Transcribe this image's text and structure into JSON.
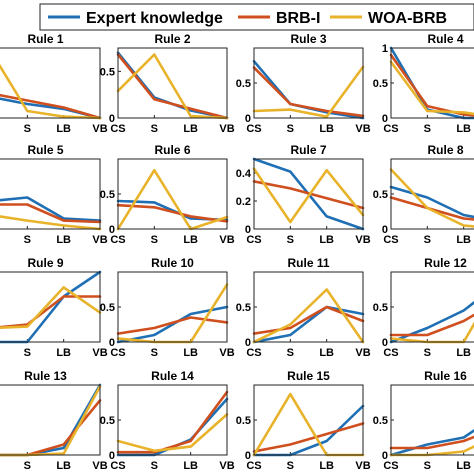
{
  "chart_data": {
    "type": "line",
    "legend": {
      "placement": "top-center",
      "entries": [
        "Expert knowledge",
        "BRB-I",
        "WOA-BRB"
      ]
    },
    "colors": {
      "Expert knowledge": "#1f6fb4",
      "BRB-I": "#cf4f1f",
      "WOA-BRB": "#e8b32a"
    },
    "x": [
      "CS",
      "S",
      "LB",
      "VB"
    ],
    "panels": [
      {
        "title": "Rule 1",
        "ylim": [
          0,
          1
        ],
        "yticks": [],
        "series": [
          {
            "name": "Expert knowledge",
            "values": [
              0.3,
              0.2,
              0.13,
              0.0
            ]
          },
          {
            "name": "BRB-I",
            "values": [
              0.35,
              0.25,
              0.15,
              0.0
            ]
          },
          {
            "name": "WOA-BRB",
            "values": [
              0.95,
              0.1,
              0.02,
              0.0
            ]
          }
        ]
      },
      {
        "title": "Rule 2",
        "ylim": [
          0,
          0.75
        ],
        "yticks": [
          "0",
          "0.5"
        ],
        "series": [
          {
            "name": "Expert knowledge",
            "values": [
              0.7,
              0.22,
              0.08,
              0.0
            ]
          },
          {
            "name": "BRB-I",
            "values": [
              0.68,
              0.2,
              0.1,
              0.0
            ]
          },
          {
            "name": "WOA-BRB",
            "values": [
              0.29,
              0.68,
              0.02,
              0.0
            ]
          }
        ]
      },
      {
        "title": "Rule 3",
        "ylim": [
          0,
          1
        ],
        "yticks": [
          "0",
          "0.5"
        ],
        "series": [
          {
            "name": "Expert knowledge",
            "values": [
              0.81,
              0.2,
              0.08,
              0.0
            ]
          },
          {
            "name": "BRB-I",
            "values": [
              0.72,
              0.2,
              0.1,
              0.03
            ]
          },
          {
            "name": "WOA-BRB",
            "values": [
              0.1,
              0.12,
              0.02,
              0.73
            ]
          }
        ]
      },
      {
        "title": "Rule 4",
        "ylim": [
          0,
          1
        ],
        "yticks": [
          "0",
          "0.5",
          "1"
        ],
        "series": [
          {
            "name": "Expert knowledge",
            "values": [
              1.0,
              0.12,
              0.0,
              0.0
            ]
          },
          {
            "name": "BRB-I",
            "values": [
              0.9,
              0.17,
              0.05,
              0.0
            ]
          },
          {
            "name": "WOA-BRB",
            "values": [
              0.8,
              0.1,
              0.08,
              0.0
            ]
          }
        ]
      },
      {
        "title": "Rule 5",
        "ylim": [
          0,
          1
        ],
        "yticks": [],
        "series": [
          {
            "name": "Expert knowledge",
            "values": [
              0.4,
              0.45,
              0.15,
              0.12
            ]
          },
          {
            "name": "BRB-I",
            "values": [
              0.35,
              0.35,
              0.12,
              0.1
            ]
          },
          {
            "name": "WOA-BRB",
            "values": [
              0.2,
              0.12,
              0.05,
              0.0
            ]
          }
        ]
      },
      {
        "title": "Rule 6",
        "ylim": [
          0,
          1
        ],
        "yticks": [
          "0",
          "0.5"
        ],
        "series": [
          {
            "name": "Expert knowledge",
            "values": [
              0.4,
              0.38,
              0.15,
              0.13
            ]
          },
          {
            "name": "BRB-I",
            "values": [
              0.34,
              0.31,
              0.18,
              0.11
            ]
          },
          {
            "name": "WOA-BRB",
            "values": [
              0.0,
              0.84,
              0.0,
              0.17
            ]
          }
        ]
      },
      {
        "title": "Rule 7",
        "ylim": [
          0,
          0.5
        ],
        "yticks": [
          "0",
          "0.2",
          "0.4"
        ],
        "series": [
          {
            "name": "Expert knowledge",
            "values": [
              0.5,
              0.41,
              0.09,
              0.0
            ]
          },
          {
            "name": "BRB-I",
            "values": [
              0.34,
              0.29,
              0.22,
              0.15
            ]
          },
          {
            "name": "WOA-BRB",
            "values": [
              0.43,
              0.05,
              0.42,
              0.1
            ]
          }
        ]
      },
      {
        "title": "Rule 8",
        "ylim": [
          0,
          1
        ],
        "yticks": [
          "0",
          "0.5"
        ],
        "series": [
          {
            "name": "Expert knowledge",
            "values": [
              0.6,
              0.45,
              0.2,
              0.1
            ]
          },
          {
            "name": "BRB-I",
            "values": [
              0.45,
              0.3,
              0.15,
              0.1
            ]
          },
          {
            "name": "WOA-BRB",
            "values": [
              0.85,
              0.3,
              0.05,
              0.0
            ]
          }
        ]
      },
      {
        "title": "Rule 9",
        "ylim": [
          0,
          1
        ],
        "yticks": [],
        "series": [
          {
            "name": "Expert knowledge",
            "values": [
              0.0,
              0.0,
              0.65,
              1.0
            ]
          },
          {
            "name": "BRB-I",
            "values": [
              0.2,
              0.25,
              0.65,
              0.65
            ]
          },
          {
            "name": "WOA-BRB",
            "values": [
              0.2,
              0.22,
              0.78,
              0.42
            ]
          }
        ]
      },
      {
        "title": "Rule 10",
        "ylim": [
          0,
          1
        ],
        "yticks": [
          "0",
          "0.5"
        ],
        "series": [
          {
            "name": "Expert knowledge",
            "values": [
              0.0,
              0.1,
              0.4,
              0.5
            ]
          },
          {
            "name": "BRB-I",
            "values": [
              0.12,
              0.2,
              0.35,
              0.28
            ]
          },
          {
            "name": "WOA-BRB",
            "values": [
              0.05,
              0.0,
              0.0,
              0.82
            ]
          }
        ]
      },
      {
        "title": "Rule 11",
        "ylim": [
          0,
          1
        ],
        "yticks": [
          "0",
          "0.5"
        ],
        "series": [
          {
            "name": "Expert knowledge",
            "values": [
              0.0,
              0.1,
              0.5,
              0.4
            ]
          },
          {
            "name": "BRB-I",
            "values": [
              0.12,
              0.2,
              0.5,
              0.3
            ]
          },
          {
            "name": "WOA-BRB",
            "values": [
              0.0,
              0.25,
              0.75,
              0.0
            ]
          }
        ]
      },
      {
        "title": "Rule 12",
        "ylim": [
          0,
          1
        ],
        "yticks": [
          "0",
          "0.5"
        ],
        "series": [
          {
            "name": "Expert knowledge",
            "values": [
              0.0,
              0.2,
              0.45,
              0.85
            ]
          },
          {
            "name": "BRB-I",
            "values": [
              0.1,
              0.1,
              0.3,
              0.6
            ]
          },
          {
            "name": "WOA-BRB",
            "values": [
              0.05,
              0.0,
              0.0,
              0.9
            ]
          }
        ]
      },
      {
        "title": "Rule 13",
        "ylim": [
          0,
          1
        ],
        "yticks": [],
        "series": [
          {
            "name": "Expert knowledge",
            "values": [
              0.0,
              0.0,
              0.1,
              1.0
            ]
          },
          {
            "name": "BRB-I",
            "values": [
              0.0,
              0.0,
              0.15,
              0.78
            ]
          },
          {
            "name": "WOA-BRB",
            "values": [
              0.0,
              0.0,
              0.02,
              0.98
            ]
          }
        ]
      },
      {
        "title": "Rule 14",
        "ylim": [
          0,
          1
        ],
        "yticks": [
          "0",
          "0.5"
        ],
        "series": [
          {
            "name": "Expert knowledge",
            "values": [
              0.0,
              0.0,
              0.22,
              0.8
            ]
          },
          {
            "name": "BRB-I",
            "values": [
              0.04,
              0.04,
              0.2,
              0.9
            ]
          },
          {
            "name": "WOA-BRB",
            "values": [
              0.2,
              0.06,
              0.12,
              0.58
            ]
          }
        ]
      },
      {
        "title": "Rule 15",
        "ylim": [
          0,
          1
        ],
        "yticks": [
          "0",
          "0.5"
        ],
        "series": [
          {
            "name": "Expert knowledge",
            "values": [
              0.0,
              0.0,
              0.2,
              0.7
            ]
          },
          {
            "name": "BRB-I",
            "values": [
              0.05,
              0.15,
              0.3,
              0.45
            ]
          },
          {
            "name": "WOA-BRB",
            "values": [
              0.0,
              0.87,
              0.0,
              0.0
            ]
          }
        ]
      },
      {
        "title": "Rule 16",
        "ylim": [
          0,
          1
        ],
        "yticks": [
          "0",
          "0.5"
        ],
        "series": [
          {
            "name": "Expert knowledge",
            "values": [
              0.0,
              0.15,
              0.25,
              0.6
            ]
          },
          {
            "name": "BRB-I",
            "values": [
              0.1,
              0.1,
              0.2,
              0.4
            ]
          },
          {
            "name": "WOA-BRB",
            "values": [
              0.0,
              0.0,
              0.05,
              0.3
            ]
          }
        ]
      }
    ]
  }
}
